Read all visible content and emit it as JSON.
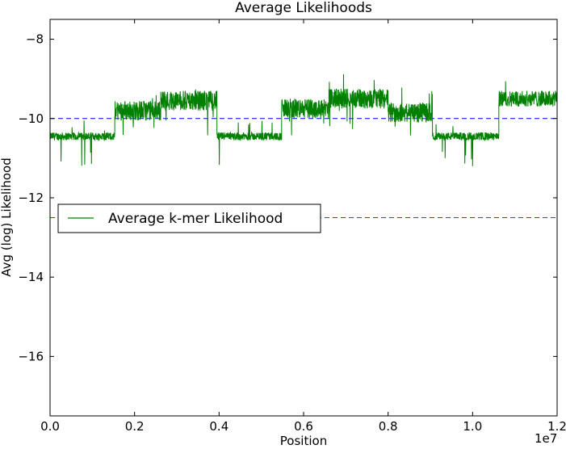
{
  "chart_data": {
    "type": "line",
    "title": "Average Likelihoods",
    "xlabel": "Position",
    "ylabel": "Avg (log) Likelihood",
    "x_multiplier_label": "1e7",
    "xlim": [
      0.0,
      1.2
    ],
    "ylim": [
      -17.5,
      -7.5
    ],
    "x_ticks": [
      {
        "value": 0.0,
        "label": "0.0"
      },
      {
        "value": 0.2,
        "label": "0.2"
      },
      {
        "value": 0.4,
        "label": "0.4"
      },
      {
        "value": 0.6,
        "label": "0.6"
      },
      {
        "value": 0.8,
        "label": "0.8"
      },
      {
        "value": 1.0,
        "label": "1.0"
      },
      {
        "value": 1.2,
        "label": "1.2"
      }
    ],
    "y_ticks": [
      {
        "value": -8,
        "label": "−8"
      },
      {
        "value": -10,
        "label": "−10"
      },
      {
        "value": -12,
        "label": "−12"
      },
      {
        "value": -14,
        "label": "−14"
      },
      {
        "value": -16,
        "label": "−16"
      }
    ],
    "grid": false,
    "legend": {
      "placement": "center-left"
    },
    "series": [
      {
        "name": "Average k-mer Likelihood",
        "color": "#008000",
        "style": "solid",
        "segments": [
          {
            "x_start": 0.0,
            "x_end": 0.153,
            "level": -10.45,
            "noise": 0.1
          },
          {
            "x_start": 0.153,
            "x_end": 0.262,
            "level": -9.8,
            "noise": 0.25
          },
          {
            "x_start": 0.262,
            "x_end": 0.395,
            "level": -9.55,
            "noise": 0.25
          },
          {
            "x_start": 0.395,
            "x_end": 0.548,
            "level": -10.45,
            "noise": 0.1
          },
          {
            "x_start": 0.548,
            "x_end": 0.66,
            "level": -9.75,
            "noise": 0.25
          },
          {
            "x_start": 0.66,
            "x_end": 0.8,
            "level": -9.5,
            "noise": 0.25
          },
          {
            "x_start": 0.8,
            "x_end": 0.905,
            "level": -9.85,
            "noise": 0.25
          },
          {
            "x_start": 0.905,
            "x_end": 1.062,
            "level": -10.45,
            "noise": 0.1
          },
          {
            "x_start": 1.062,
            "x_end": 1.2,
            "level": -9.5,
            "noise": 0.2
          }
        ]
      }
    ],
    "reference_lines": [
      {
        "y": -10.0,
        "color": "#0000ff",
        "style": "dashed"
      },
      {
        "y": -12.5,
        "color": "#ff0000",
        "style": "dashed"
      }
    ]
  }
}
